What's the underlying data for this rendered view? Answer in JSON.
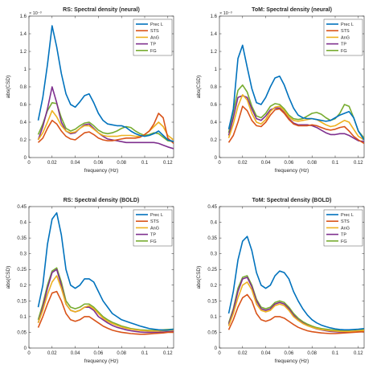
{
  "chart_data": [
    {
      "type": "line",
      "title": "RS: Spectral density (neural)",
      "xlabel": "frequency (Hz)",
      "ylabel": "abs(CSD)",
      "exponent_label": "× 10⁻³",
      "xlim": [
        0,
        0.125
      ],
      "ylim": [
        0,
        1.6
      ],
      "xticks": [
        "0",
        "0.02",
        "0.04",
        "0.06",
        "0.08",
        "0.1",
        "0.12"
      ],
      "xtick_values": [
        0,
        0.02,
        0.04,
        0.06,
        0.08,
        0.1,
        0.12
      ],
      "yticks": [
        "0",
        "0.2",
        "0.4",
        "0.6",
        "0.8",
        "1",
        "1.2",
        "1.4",
        "1.6"
      ],
      "ytick_values": [
        0,
        0.2,
        0.4,
        0.6,
        0.8,
        1.0,
        1.2,
        1.4,
        1.6
      ],
      "x": [
        0.008,
        0.012,
        0.016,
        0.02,
        0.024,
        0.028,
        0.032,
        0.036,
        0.04,
        0.044,
        0.048,
        0.052,
        0.056,
        0.06,
        0.064,
        0.068,
        0.072,
        0.076,
        0.08,
        0.084,
        0.088,
        0.092,
        0.096,
        0.1,
        0.104,
        0.108,
        0.112,
        0.116,
        0.12,
        0.125
      ],
      "series": [
        {
          "name": "Prec L",
          "values": [
            0.42,
            0.68,
            1.05,
            1.49,
            1.25,
            0.95,
            0.72,
            0.6,
            0.57,
            0.63,
            0.7,
            0.72,
            0.62,
            0.5,
            0.42,
            0.38,
            0.37,
            0.36,
            0.36,
            0.34,
            0.3,
            0.27,
            0.25,
            0.24,
            0.25,
            0.27,
            0.3,
            0.25,
            0.2,
            0.18
          ]
        },
        {
          "name": "STS",
          "values": [
            0.17,
            0.22,
            0.33,
            0.42,
            0.38,
            0.3,
            0.24,
            0.21,
            0.2,
            0.24,
            0.28,
            0.29,
            0.26,
            0.22,
            0.2,
            0.19,
            0.19,
            0.2,
            0.21,
            0.22,
            0.22,
            0.22,
            0.23,
            0.26,
            0.3,
            0.38,
            0.5,
            0.45,
            0.22,
            0.16
          ]
        },
        {
          "name": "AnG",
          "values": [
            0.2,
            0.28,
            0.4,
            0.53,
            0.46,
            0.36,
            0.3,
            0.28,
            0.29,
            0.33,
            0.36,
            0.36,
            0.32,
            0.28,
            0.25,
            0.24,
            0.24,
            0.24,
            0.25,
            0.25,
            0.25,
            0.24,
            0.24,
            0.26,
            0.3,
            0.35,
            0.4,
            0.35,
            0.25,
            0.2
          ]
        },
        {
          "name": "TP",
          "values": [
            0.2,
            0.35,
            0.55,
            0.8,
            0.62,
            0.4,
            0.3,
            0.27,
            0.28,
            0.33,
            0.37,
            0.38,
            0.33,
            0.28,
            0.24,
            0.21,
            0.2,
            0.19,
            0.18,
            0.17,
            0.17,
            0.17,
            0.17,
            0.17,
            0.17,
            0.17,
            0.16,
            0.14,
            0.12,
            0.1
          ]
        },
        {
          "name": "FG",
          "values": [
            0.26,
            0.38,
            0.53,
            0.62,
            0.61,
            0.45,
            0.33,
            0.3,
            0.32,
            0.36,
            0.39,
            0.4,
            0.36,
            0.31,
            0.28,
            0.27,
            0.28,
            0.3,
            0.33,
            0.35,
            0.34,
            0.3,
            0.27,
            0.25,
            0.26,
            0.28,
            0.27,
            0.23,
            0.19,
            0.18
          ]
        }
      ],
      "legend": "top-right",
      "grid": false
    },
    {
      "type": "line",
      "title": "ToM: Spectral density (neural)",
      "xlabel": "frequency (Hz)",
      "ylabel": "abs(CSD)",
      "exponent_label": "× 10⁻³",
      "xlim": [
        0,
        0.125
      ],
      "ylim": [
        0,
        1.6
      ],
      "xticks": [
        "0",
        "0.02",
        "0.04",
        "0.06",
        "0.08",
        "0.1",
        "0.12"
      ],
      "xtick_values": [
        0,
        0.02,
        0.04,
        0.06,
        0.08,
        0.1,
        0.12
      ],
      "yticks": [
        "0",
        "0.2",
        "0.4",
        "0.6",
        "0.8",
        "1",
        "1.2",
        "1.4",
        "1.6"
      ],
      "ytick_values": [
        0,
        0.2,
        0.4,
        0.6,
        0.8,
        1.0,
        1.2,
        1.4,
        1.6
      ],
      "x": [
        0.008,
        0.012,
        0.016,
        0.02,
        0.024,
        0.028,
        0.032,
        0.036,
        0.04,
        0.044,
        0.048,
        0.052,
        0.056,
        0.06,
        0.064,
        0.068,
        0.072,
        0.076,
        0.08,
        0.084,
        0.088,
        0.092,
        0.096,
        0.1,
        0.104,
        0.108,
        0.112,
        0.116,
        0.12,
        0.125
      ],
      "series": [
        {
          "name": "Prec L",
          "values": [
            0.32,
            0.55,
            1.12,
            1.27,
            1.02,
            0.78,
            0.62,
            0.6,
            0.68,
            0.8,
            0.9,
            0.92,
            0.82,
            0.68,
            0.56,
            0.48,
            0.45,
            0.44,
            0.44,
            0.43,
            0.42,
            0.41,
            0.42,
            0.45,
            0.48,
            0.5,
            0.52,
            0.45,
            0.3,
            0.2
          ]
        },
        {
          "name": "STS",
          "values": [
            0.17,
            0.25,
            0.4,
            0.58,
            0.53,
            0.42,
            0.36,
            0.35,
            0.4,
            0.48,
            0.54,
            0.55,
            0.5,
            0.43,
            0.38,
            0.36,
            0.36,
            0.36,
            0.37,
            0.36,
            0.34,
            0.32,
            0.31,
            0.32,
            0.34,
            0.35,
            0.3,
            0.24,
            0.2,
            0.16
          ]
        },
        {
          "name": "AnG",
          "values": [
            0.22,
            0.38,
            0.58,
            0.71,
            0.65,
            0.5,
            0.4,
            0.38,
            0.43,
            0.52,
            0.57,
            0.58,
            0.53,
            0.46,
            0.42,
            0.41,
            0.42,
            0.43,
            0.44,
            0.43,
            0.4,
            0.37,
            0.35,
            0.36,
            0.39,
            0.42,
            0.4,
            0.32,
            0.24,
            0.2
          ]
        },
        {
          "name": "TP",
          "values": [
            0.25,
            0.45,
            0.68,
            0.7,
            0.68,
            0.55,
            0.44,
            0.42,
            0.47,
            0.54,
            0.56,
            0.56,
            0.51,
            0.44,
            0.39,
            0.37,
            0.37,
            0.37,
            0.36,
            0.34,
            0.31,
            0.28,
            0.26,
            0.26,
            0.27,
            0.27,
            0.25,
            0.22,
            0.19,
            0.18
          ]
        },
        {
          "name": "FG",
          "values": [
            0.28,
            0.52,
            0.76,
            0.82,
            0.74,
            0.58,
            0.47,
            0.45,
            0.5,
            0.58,
            0.61,
            0.6,
            0.55,
            0.48,
            0.44,
            0.43,
            0.44,
            0.47,
            0.5,
            0.51,
            0.49,
            0.45,
            0.42,
            0.44,
            0.5,
            0.6,
            0.58,
            0.45,
            0.3,
            0.22
          ]
        }
      ],
      "legend": "top-right",
      "grid": false
    },
    {
      "type": "line",
      "title": "RS: Spectral density (BOLD)",
      "xlabel": "frequency (Hz)",
      "ylabel": "abs(CSD)",
      "xlim": [
        0,
        0.125
      ],
      "ylim": [
        0,
        0.45
      ],
      "xticks": [
        "0",
        "0.02",
        "0.04",
        "0.06",
        "0.08",
        "0.1",
        "0.12"
      ],
      "xtick_values": [
        0,
        0.02,
        0.04,
        0.06,
        0.08,
        0.1,
        0.12
      ],
      "yticks": [
        "0",
        "0.05",
        "0.1",
        "0.15",
        "0.2",
        "0.25",
        "0.3",
        "0.35",
        "0.4",
        "0.45"
      ],
      "ytick_values": [
        0,
        0.05,
        0.1,
        0.15,
        0.2,
        0.25,
        0.3,
        0.35,
        0.4,
        0.45
      ],
      "x": [
        0.008,
        0.012,
        0.016,
        0.02,
        0.024,
        0.028,
        0.032,
        0.036,
        0.04,
        0.044,
        0.048,
        0.052,
        0.056,
        0.06,
        0.064,
        0.068,
        0.072,
        0.076,
        0.08,
        0.084,
        0.088,
        0.092,
        0.096,
        0.1,
        0.104,
        0.108,
        0.112,
        0.116,
        0.12,
        0.125
      ],
      "series": [
        {
          "name": "Prec L",
          "values": [
            0.13,
            0.2,
            0.33,
            0.41,
            0.43,
            0.36,
            0.25,
            0.2,
            0.19,
            0.2,
            0.22,
            0.22,
            0.21,
            0.18,
            0.15,
            0.13,
            0.11,
            0.1,
            0.09,
            0.085,
            0.08,
            0.075,
            0.07,
            0.066,
            0.062,
            0.06,
            0.058,
            0.057,
            0.057,
            0.06
          ]
        },
        {
          "name": "STS",
          "values": [
            0.065,
            0.1,
            0.14,
            0.175,
            0.18,
            0.15,
            0.11,
            0.09,
            0.085,
            0.09,
            0.1,
            0.1,
            0.09,
            0.08,
            0.07,
            0.063,
            0.057,
            0.053,
            0.05,
            0.048,
            0.046,
            0.045,
            0.044,
            0.044,
            0.045,
            0.046,
            0.047,
            0.048,
            0.05,
            0.05
          ]
        },
        {
          "name": "AnG",
          "values": [
            0.08,
            0.12,
            0.17,
            0.21,
            0.23,
            0.19,
            0.14,
            0.12,
            0.115,
            0.12,
            0.13,
            0.135,
            0.125,
            0.11,
            0.095,
            0.085,
            0.078,
            0.072,
            0.067,
            0.063,
            0.06,
            0.058,
            0.056,
            0.055,
            0.054,
            0.054,
            0.054,
            0.055,
            0.056,
            0.057
          ]
        },
        {
          "name": "TP",
          "values": [
            0.08,
            0.13,
            0.19,
            0.24,
            0.25,
            0.2,
            0.14,
            0.12,
            0.115,
            0.12,
            0.13,
            0.13,
            0.12,
            0.1,
            0.09,
            0.08,
            0.072,
            0.066,
            0.062,
            0.058,
            0.055,
            0.053,
            0.051,
            0.05,
            0.05,
            0.05,
            0.05,
            0.051,
            0.052,
            0.053
          ]
        },
        {
          "name": "FG",
          "values": [
            0.09,
            0.14,
            0.2,
            0.245,
            0.255,
            0.21,
            0.15,
            0.13,
            0.125,
            0.13,
            0.14,
            0.14,
            0.13,
            0.115,
            0.1,
            0.09,
            0.082,
            0.076,
            0.07,
            0.066,
            0.062,
            0.06,
            0.058,
            0.057,
            0.056,
            0.056,
            0.057,
            0.058,
            0.059,
            0.06
          ]
        }
      ],
      "legend": "top-right",
      "grid": false
    },
    {
      "type": "line",
      "title": "ToM: Spectral density (BOLD)",
      "xlabel": "frequency (Hz)",
      "ylabel": "abs(CSD)",
      "xlim": [
        0,
        0.125
      ],
      "ylim": [
        0,
        0.45
      ],
      "xticks": [
        "0",
        "0.02",
        "0.04",
        "0.06",
        "0.08",
        "0.1",
        "0.12"
      ],
      "xtick_values": [
        0,
        0.02,
        0.04,
        0.06,
        0.08,
        0.1,
        0.12
      ],
      "yticks": [
        "0",
        "0.05",
        "0.1",
        "0.15",
        "0.2",
        "0.25",
        "0.3",
        "0.35",
        "0.4",
        "0.45"
      ],
      "ytick_values": [
        0,
        0.05,
        0.1,
        0.15,
        0.2,
        0.25,
        0.3,
        0.35,
        0.4,
        0.45
      ],
      "x": [
        0.008,
        0.012,
        0.016,
        0.02,
        0.024,
        0.028,
        0.032,
        0.036,
        0.04,
        0.044,
        0.048,
        0.052,
        0.056,
        0.06,
        0.064,
        0.068,
        0.072,
        0.076,
        0.08,
        0.084,
        0.088,
        0.092,
        0.096,
        0.1,
        0.104,
        0.108,
        0.112,
        0.116,
        0.12,
        0.125
      ],
      "series": [
        {
          "name": "Prec L",
          "values": [
            0.11,
            0.18,
            0.28,
            0.34,
            0.355,
            0.31,
            0.24,
            0.2,
            0.19,
            0.2,
            0.23,
            0.245,
            0.24,
            0.22,
            0.18,
            0.15,
            0.125,
            0.105,
            0.09,
            0.08,
            0.073,
            0.068,
            0.064,
            0.061,
            0.059,
            0.058,
            0.058,
            0.059,
            0.06,
            0.062
          ]
        },
        {
          "name": "STS",
          "values": [
            0.058,
            0.09,
            0.13,
            0.16,
            0.17,
            0.15,
            0.11,
            0.09,
            0.085,
            0.09,
            0.1,
            0.1,
            0.095,
            0.085,
            0.075,
            0.066,
            0.06,
            0.055,
            0.052,
            0.05,
            0.048,
            0.047,
            0.046,
            0.046,
            0.047,
            0.048,
            0.049,
            0.05,
            0.051,
            0.052
          ]
        },
        {
          "name": "AnG",
          "values": [
            0.07,
            0.11,
            0.16,
            0.2,
            0.21,
            0.185,
            0.14,
            0.12,
            0.115,
            0.12,
            0.135,
            0.14,
            0.135,
            0.12,
            0.1,
            0.088,
            0.078,
            0.071,
            0.066,
            0.062,
            0.059,
            0.057,
            0.055,
            0.054,
            0.053,
            0.053,
            0.053,
            0.054,
            0.055,
            0.056
          ]
        },
        {
          "name": "TP",
          "values": [
            0.075,
            0.12,
            0.18,
            0.22,
            0.225,
            0.195,
            0.15,
            0.125,
            0.12,
            0.125,
            0.14,
            0.145,
            0.14,
            0.125,
            0.105,
            0.09,
            0.08,
            0.072,
            0.066,
            0.061,
            0.058,
            0.055,
            0.053,
            0.052,
            0.051,
            0.051,
            0.051,
            0.052,
            0.053,
            0.054
          ]
        },
        {
          "name": "FG",
          "values": [
            0.08,
            0.125,
            0.19,
            0.225,
            0.23,
            0.2,
            0.155,
            0.13,
            0.125,
            0.13,
            0.145,
            0.15,
            0.145,
            0.13,
            0.11,
            0.095,
            0.084,
            0.076,
            0.07,
            0.065,
            0.062,
            0.06,
            0.058,
            0.057,
            0.056,
            0.056,
            0.057,
            0.058,
            0.059,
            0.06
          ]
        }
      ],
      "legend": "top-right",
      "grid": false
    }
  ],
  "colors": {
    "Prec L": "#0072BD",
    "STS": "#D95319",
    "AnG": "#EDB120",
    "TP": "#7E2F8E",
    "FG": "#77AC30"
  }
}
